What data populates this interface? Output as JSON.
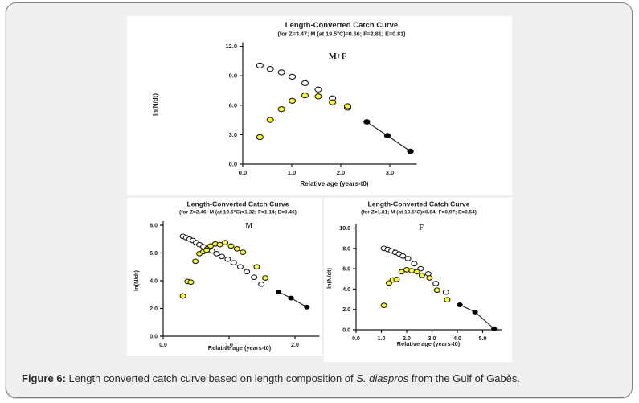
{
  "colors": {
    "panel_bg": "#f0f0f1",
    "panel_border": "#828282",
    "chart_bg": "#ffffff",
    "axis": "#1a1a1a",
    "text": "#1f1f1f",
    "marker_open": "#ffffff",
    "marker_yellow": "#ffff2e",
    "marker_black": "#000000"
  },
  "caption": {
    "label": "Figure 6:",
    "text_before": " Length converted catch curve based on length composition of ",
    "species": "S. diaspros",
    "text_after": " from the Gulf of Gabès."
  },
  "chart_data": [
    {
      "type": "scatter",
      "title": "Length-Converted Catch Curve",
      "subtitle": "(for Z=3.47; M (at 19.5°C)=0.66; F=2.81; E=0.81)",
      "group_label": "M+F",
      "xlabel": "Relative age (years-t0)",
      "ylabel": "ln(N/dt)",
      "xlim": [
        0,
        3.55
      ],
      "ylim": [
        0,
        12
      ],
      "xticks": [
        0.0,
        1.0,
        2.0,
        3.0
      ],
      "yticks": [
        0.0,
        3.0,
        6.0,
        9.0,
        12.0
      ],
      "grid": false,
      "legend": "none",
      "series": [
        {
          "name": "points-not-used-open",
          "marker": "open-circle",
          "fill": "#ffffff",
          "line": false,
          "points": [
            [
              0.35,
              10.05
            ],
            [
              0.56,
              9.7
            ],
            [
              0.79,
              9.35
            ],
            [
              1.01,
              8.9
            ],
            [
              1.27,
              8.25
            ],
            [
              1.54,
              7.6
            ],
            [
              1.83,
              6.7
            ],
            [
              2.14,
              5.75
            ]
          ]
        },
        {
          "name": "points-ascending-yellow",
          "marker": "yellow-circle",
          "fill": "#ffff2e",
          "line": false,
          "points": [
            [
              0.35,
              2.75
            ],
            [
              0.56,
              4.5
            ],
            [
              0.79,
              5.6
            ],
            [
              1.01,
              6.45
            ],
            [
              1.27,
              7.0
            ],
            [
              1.54,
              6.9
            ],
            [
              1.83,
              6.3
            ],
            [
              2.14,
              5.9
            ]
          ]
        },
        {
          "name": "regression-points-black",
          "marker": "filled-circle",
          "fill": "#000000",
          "line": true,
          "points": [
            [
              2.53,
              4.3
            ],
            [
              2.95,
              2.9
            ],
            [
              3.42,
              1.3
            ]
          ]
        }
      ]
    },
    {
      "type": "scatter",
      "title": "Length-Converted Catch Curve",
      "subtitle": "(for Z=2.46; M (at 19.5°C)=1.32; F=1.14; E=0.46)",
      "group_label": "M",
      "xlabel": "Relative age (years-t0)",
      "ylabel": "ln(N/dt)",
      "xlim": [
        0,
        2.37
      ],
      "ylim": [
        0,
        8
      ],
      "xticks": [
        0.0,
        1.0,
        2.0
      ],
      "yticks": [
        0.0,
        2.0,
        4.0,
        6.0,
        8.0
      ],
      "grid": false,
      "legend": "none",
      "series": [
        {
          "name": "points-not-used-open",
          "marker": "open-circle",
          "fill": "#ffffff",
          "line": false,
          "points": [
            [
              0.3,
              7.2
            ],
            [
              0.35,
              7.1
            ],
            [
              0.4,
              7.0
            ],
            [
              0.45,
              6.9
            ],
            [
              0.5,
              6.75
            ],
            [
              0.55,
              6.6
            ],
            [
              0.61,
              6.45
            ],
            [
              0.67,
              6.3
            ],
            [
              0.74,
              6.15
            ],
            [
              0.81,
              5.95
            ],
            [
              0.89,
              5.75
            ],
            [
              0.98,
              5.55
            ],
            [
              1.07,
              5.3
            ],
            [
              1.17,
              5.0
            ],
            [
              1.27,
              4.65
            ],
            [
              1.38,
              4.25
            ],
            [
              1.49,
              3.75
            ]
          ]
        },
        {
          "name": "points-ascending-yellow",
          "marker": "yellow-circle",
          "fill": "#ffff2e",
          "line": false,
          "points": [
            [
              0.3,
              2.9
            ],
            [
              0.37,
              3.95
            ],
            [
              0.42,
              3.9
            ],
            [
              0.49,
              5.4
            ],
            [
              0.55,
              5.95
            ],
            [
              0.61,
              6.1
            ],
            [
              0.66,
              6.2
            ],
            [
              0.72,
              6.5
            ],
            [
              0.79,
              6.65
            ],
            [
              0.86,
              6.6
            ],
            [
              0.94,
              6.75
            ],
            [
              1.03,
              6.5
            ],
            [
              1.12,
              6.3
            ],
            [
              1.21,
              6.05
            ],
            [
              1.42,
              5.0
            ],
            [
              1.55,
              4.2
            ]
          ]
        },
        {
          "name": "regression-points-black",
          "marker": "filled-circle",
          "fill": "#000000",
          "line": true,
          "points": [
            [
              1.75,
              3.2
            ],
            [
              1.94,
              2.75
            ],
            [
              2.18,
              2.1
            ]
          ]
        }
      ]
    },
    {
      "type": "scatter",
      "title": "Length-Converted Catch Curve",
      "subtitle": "(for Z=1.81; M (at 19.5°C)=0.84; F=0.97; E=0.54)",
      "group_label": "F",
      "xlabel": "Relative age (years-t0)",
      "ylabel": "ln(N/dt)",
      "xlim": [
        0,
        5.75
      ],
      "ylim": [
        0,
        10
      ],
      "xticks": [
        0.0,
        1.0,
        2.0,
        3.0,
        4.0,
        5.0
      ],
      "yticks": [
        0.0,
        2.0,
        4.0,
        6.0,
        8.0,
        10.0
      ],
      "grid": false,
      "legend": "none",
      "series": [
        {
          "name": "points-not-used-open",
          "marker": "open-circle",
          "fill": "#ffffff",
          "line": false,
          "points": [
            [
              1.1,
              8.0
            ],
            [
              1.25,
              7.9
            ],
            [
              1.4,
              7.75
            ],
            [
              1.55,
              7.6
            ],
            [
              1.7,
              7.45
            ],
            [
              1.85,
              7.25
            ],
            [
              2.05,
              7.0
            ],
            [
              2.3,
              6.5
            ],
            [
              2.55,
              6.0
            ],
            [
              2.85,
              5.5
            ],
            [
              3.15,
              4.55
            ],
            [
              3.55,
              3.7
            ]
          ]
        },
        {
          "name": "points-ascending-yellow",
          "marker": "yellow-circle",
          "fill": "#ffff2e",
          "line": false,
          "points": [
            [
              1.1,
              2.4
            ],
            [
              1.3,
              4.6
            ],
            [
              1.45,
              4.9
            ],
            [
              1.6,
              4.95
            ],
            [
              1.8,
              5.7
            ],
            [
              2.0,
              5.9
            ],
            [
              2.2,
              5.8
            ],
            [
              2.4,
              5.7
            ],
            [
              2.6,
              5.35
            ],
            [
              2.9,
              5.1
            ],
            [
              3.2,
              3.9
            ],
            [
              3.6,
              2.95
            ]
          ]
        },
        {
          "name": "regression-points-black",
          "marker": "filled-circle",
          "fill": "#000000",
          "line": true,
          "points": [
            [
              4.1,
              2.45
            ],
            [
              4.7,
              1.75
            ],
            [
              5.45,
              0.1
            ]
          ]
        }
      ]
    }
  ]
}
